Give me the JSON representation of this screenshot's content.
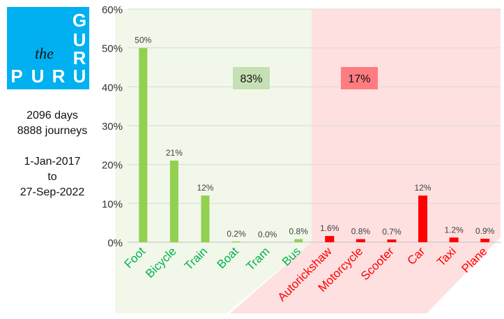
{
  "logo": {
    "text_the": "the",
    "letters_top": [
      "G",
      "U",
      "R",
      "U"
    ],
    "letters_bottom": [
      "P",
      "U",
      "R",
      "U"
    ]
  },
  "info": {
    "days": "2096 days",
    "journeys": "8888 journeys",
    "from": "1-Jan-2017",
    "to_word": "to",
    "to": "27-Sep-2022"
  },
  "colors": {
    "green_bar": "#92d050",
    "red_bar": "#ff0000",
    "green_label": "#00b050",
    "red_label": "#ff0000",
    "green_bg": "#f1f8e9",
    "red_bg": "#ffe0e0",
    "green_box": "#c5e0b4",
    "red_box": "#ff7c80"
  },
  "chart_data": {
    "type": "bar",
    "categories": [
      "Foot",
      "Bicycle",
      "Train",
      "Boat",
      "Tram",
      "Bus",
      "Autorickshaw",
      "Motorcycle",
      "Scooter",
      "Car",
      "Taxi",
      "Plane"
    ],
    "values": [
      50,
      21,
      12,
      0.2,
      0.0,
      0.8,
      1.6,
      0.8,
      0.7,
      12,
      1.2,
      0.9
    ],
    "data_labels": [
      "50%",
      "21%",
      "12%",
      "0.2%",
      "0.0%",
      "0.8%",
      "1.6%",
      "0.8%",
      "0.7%",
      "12%",
      "1.2%",
      "0.9%"
    ],
    "groups": [
      "green",
      "green",
      "green",
      "green",
      "green",
      "green",
      "red",
      "red",
      "red",
      "red",
      "red",
      "red"
    ],
    "ylim": [
      0,
      60
    ],
    "yticks": [
      "0%",
      "10%",
      "20%",
      "30%",
      "40%",
      "50%",
      "60%"
    ],
    "grid": true,
    "annotations": {
      "green_total": "83%",
      "red_total": "17%"
    }
  }
}
